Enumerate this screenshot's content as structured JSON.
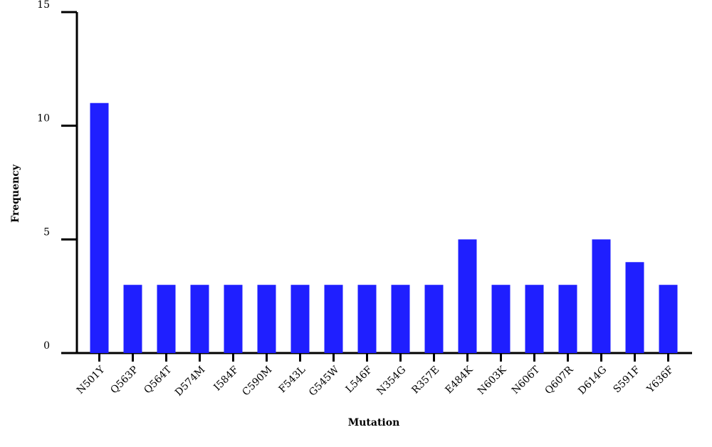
{
  "chart_data": {
    "type": "bar",
    "xlabel": "Mutation",
    "ylabel": "Frequency",
    "categories": [
      "N501Y",
      "Q563P",
      "Q564T",
      "D574M",
      "I584F",
      "C590M",
      "F543L",
      "G545W",
      "L546F",
      "N354G",
      "R357E",
      "E484K",
      "N603K",
      "N606T",
      "Q607R",
      "D614G",
      "S591F",
      "Y636F"
    ],
    "values": [
      11,
      3,
      3,
      3,
      3,
      3,
      3,
      3,
      3,
      3,
      3,
      5,
      3,
      3,
      3,
      5,
      4,
      3
    ],
    "color": "#1f1fff",
    "ylim": [
      0,
      15
    ],
    "yticks": [
      0,
      5,
      10,
      15
    ]
  }
}
